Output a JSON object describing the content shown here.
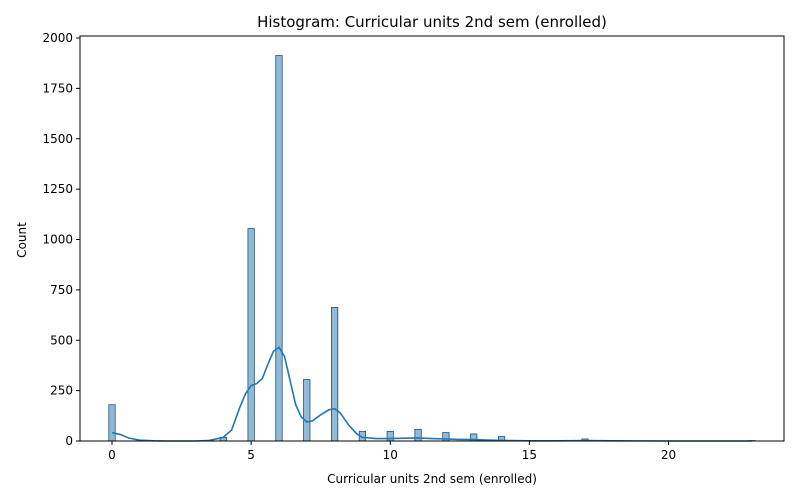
{
  "chart_data": {
    "type": "bar",
    "title": "Histogram: Curricular units 2nd sem (enrolled)",
    "xlabel": "Curricular units 2nd sem (enrolled)",
    "ylabel": "Count",
    "xlim": [
      -1.15,
      24.15
    ],
    "ylim": [
      0,
      2010
    ],
    "xticks": [
      0,
      5,
      10,
      15,
      20
    ],
    "yticks": [
      0,
      250,
      500,
      750,
      1000,
      1250,
      1500,
      1750,
      2000
    ],
    "bin_width": 0.23,
    "bars": [
      {
        "x": 0,
        "count": 180
      },
      {
        "x": 4,
        "count": 18
      },
      {
        "x": 5,
        "count": 1054
      },
      {
        "x": 6,
        "count": 1913
      },
      {
        "x": 7,
        "count": 305
      },
      {
        "x": 8,
        "count": 663
      },
      {
        "x": 9,
        "count": 48
      },
      {
        "x": 10,
        "count": 48
      },
      {
        "x": 11,
        "count": 58
      },
      {
        "x": 12,
        "count": 42
      },
      {
        "x": 13,
        "count": 35
      },
      {
        "x": 14,
        "count": 22
      },
      {
        "x": 17,
        "count": 10
      },
      {
        "x": 23,
        "count": 2
      }
    ],
    "kde": [
      [
        0,
        42
      ],
      [
        0.3,
        32
      ],
      [
        0.6,
        15
      ],
      [
        1,
        4
      ],
      [
        1.5,
        1
      ],
      [
        2,
        0
      ],
      [
        3,
        0
      ],
      [
        3.5,
        3
      ],
      [
        4,
        18
      ],
      [
        4.3,
        55
      ],
      [
        4.6,
        170
      ],
      [
        4.8,
        235
      ],
      [
        5,
        275
      ],
      [
        5.2,
        285
      ],
      [
        5.4,
        310
      ],
      [
        5.6,
        380
      ],
      [
        5.8,
        445
      ],
      [
        6,
        465
      ],
      [
        6.2,
        420
      ],
      [
        6.4,
        300
      ],
      [
        6.6,
        180
      ],
      [
        6.8,
        120
      ],
      [
        7,
        95
      ],
      [
        7.2,
        100
      ],
      [
        7.5,
        130
      ],
      [
        7.8,
        155
      ],
      [
        8,
        160
      ],
      [
        8.2,
        140
      ],
      [
        8.5,
        80
      ],
      [
        8.8,
        35
      ],
      [
        9,
        18
      ],
      [
        9.5,
        12
      ],
      [
        10,
        12
      ],
      [
        10.5,
        14
      ],
      [
        11,
        15
      ],
      [
        11.5,
        12
      ],
      [
        12,
        10
      ],
      [
        12.5,
        8
      ],
      [
        13,
        7
      ],
      [
        13.5,
        5
      ],
      [
        14,
        3
      ],
      [
        15,
        1
      ],
      [
        16,
        1
      ],
      [
        17,
        2
      ],
      [
        18,
        1
      ],
      [
        20,
        0
      ],
      [
        23,
        0
      ]
    ]
  }
}
